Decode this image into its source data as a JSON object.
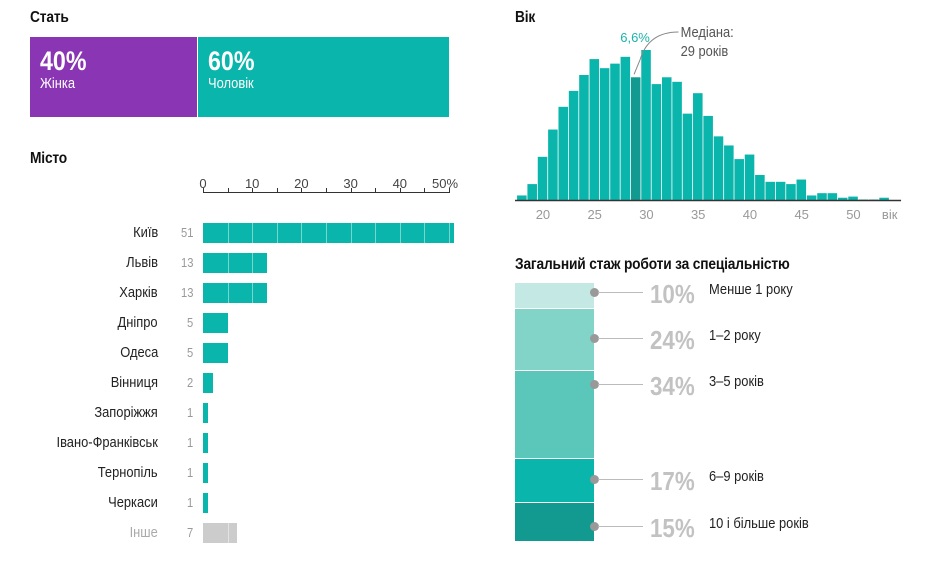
{
  "gender": {
    "title": "Стать",
    "segments": [
      {
        "pct": 40,
        "pct_label": "40%",
        "label": "Жінка",
        "color": "#8a35b3"
      },
      {
        "pct": 60,
        "pct_label": "60%",
        "label": "Чоловік",
        "color": "#0ab5ab"
      }
    ]
  },
  "city": {
    "title": "Місто",
    "axis_ticks": [
      "0",
      "10",
      "20",
      "30",
      "40",
      "50%"
    ],
    "axis_max": 50,
    "rows": [
      {
        "name": "Київ",
        "value": 51,
        "value_label": "51",
        "other": false
      },
      {
        "name": "Львів",
        "value": 13,
        "value_label": "13",
        "other": false
      },
      {
        "name": "Харків",
        "value": 13,
        "value_label": "13",
        "other": false
      },
      {
        "name": "Дніпро",
        "value": 5,
        "value_label": "5",
        "other": false
      },
      {
        "name": "Одеса",
        "value": 5,
        "value_label": "5",
        "other": false
      },
      {
        "name": "Вінниця",
        "value": 2,
        "value_label": "2",
        "other": false
      },
      {
        "name": "Запоріжжя",
        "value": 1,
        "value_label": "1",
        "other": false
      },
      {
        "name": "Івано-Франківськ",
        "value": 1,
        "value_label": "1",
        "other": false
      },
      {
        "name": "Тернопіль",
        "value": 1,
        "value_label": "1",
        "other": false
      },
      {
        "name": "Черкаси",
        "value": 1,
        "value_label": "1",
        "other": false
      },
      {
        "name": "Інше",
        "value": 7,
        "value_label": "7",
        "other": true
      }
    ],
    "bar_color": "#0ab5ab",
    "other_color": "#cccccc"
  },
  "chart_data": [
    {
      "type": "bar",
      "title": "Місто",
      "orientation": "horizontal",
      "categories": [
        "Київ",
        "Львів",
        "Харків",
        "Дніпро",
        "Одеса",
        "Вінниця",
        "Запоріжжя",
        "Івано-Франківськ",
        "Тернопіль",
        "Черкаси",
        "Інше"
      ],
      "values": [
        51,
        13,
        13,
        5,
        5,
        2,
        1,
        1,
        1,
        1,
        7
      ],
      "xlabel": "%",
      "xlim": [
        0,
        50
      ],
      "xticks": [
        "0",
        "10",
        "20",
        "30",
        "40",
        "50%"
      ]
    },
    {
      "type": "bar",
      "title": "Вік",
      "xlabel": "вік",
      "ylabel": "%",
      "x": [
        18,
        19,
        20,
        21,
        22,
        23,
        24,
        25,
        26,
        27,
        28,
        29,
        30,
        31,
        32,
        33,
        34,
        35,
        36,
        37,
        38,
        39,
        40,
        41,
        42,
        43,
        44,
        45,
        46,
        47,
        48,
        49,
        50,
        51,
        52,
        53
      ],
      "values": [
        0.2,
        0.7,
        1.9,
        3.1,
        4.1,
        4.8,
        5.5,
        6.2,
        5.8,
        6.0,
        6.3,
        5.4,
        6.6,
        5.1,
        5.4,
        5.2,
        3.8,
        4.7,
        3.7,
        2.8,
        2.4,
        1.8,
        2.0,
        1.1,
        0.8,
        0.8,
        0.7,
        0.9,
        0.2,
        0.3,
        0.3,
        0.1,
        0.15,
        0.02,
        0.02,
        0.1
      ],
      "xticks": [
        "20",
        "25",
        "30",
        "35",
        "40",
        "45",
        "50",
        "вік"
      ],
      "xlim": [
        17.3,
        55
      ],
      "highlight": {
        "x": 29,
        "label": "Медіана:",
        "sublabel": "29 років"
      },
      "peak_label": {
        "x": 30,
        "label": "6,6%"
      },
      "color": "#0ab5ab",
      "highlight_color": "#139a90"
    },
    {
      "type": "bar",
      "title": "Загальний стаж роботи за спеціальністю",
      "orientation": "stacked",
      "categories": [
        "Менше 1 року",
        "1–2 року",
        "3–5 років",
        "6–9 років",
        "10 і більше років"
      ],
      "values": [
        10,
        24,
        34,
        17,
        15
      ]
    }
  ],
  "age": {
    "title": "Вік",
    "peak_label": "6,6%",
    "median_label": "Медіана:",
    "median_value": "29 років",
    "axis_unit": "вік",
    "ticks": [
      "20",
      "25",
      "30",
      "35",
      "40",
      "45",
      "50"
    ]
  },
  "experience": {
    "title": "Загальний стаж роботи за спеціальністю",
    "segments": [
      {
        "pct": 10,
        "pct_label": "10%",
        "label": "Менше 1 року",
        "color": "#c4e8e3"
      },
      {
        "pct": 24,
        "pct_label": "24%",
        "label": "1–2 року",
        "color": "#82d3c8"
      },
      {
        "pct": 34,
        "pct_label": "34%",
        "label": "3–5 років",
        "color": "#5bc6ba"
      },
      {
        "pct": 17,
        "pct_label": "17%",
        "label": "6–9 років",
        "color": "#0ab5ab"
      },
      {
        "pct": 15,
        "pct_label": "15%",
        "label": "10 і більше років",
        "color": "#139a90"
      }
    ]
  }
}
